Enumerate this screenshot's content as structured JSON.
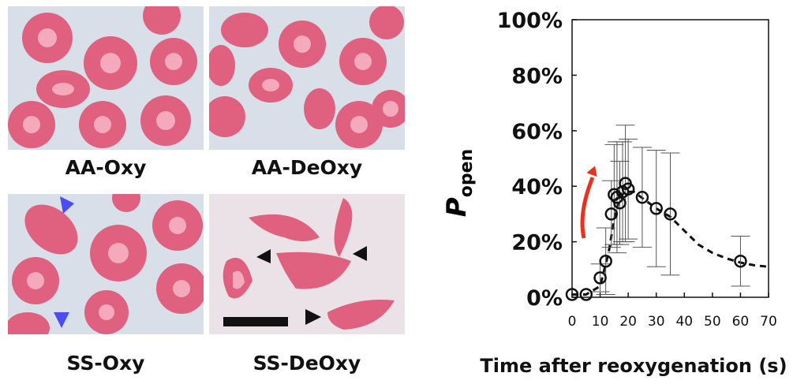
{
  "panels": [
    {
      "id": "aa-oxy",
      "label": "AA-Oxy"
    },
    {
      "id": "aa-deoxy",
      "label": "AA-DeOxy"
    },
    {
      "id": "ss-oxy",
      "label": "SS-Oxy"
    },
    {
      "id": "ss-deoxy",
      "label": "SS-DeOxy"
    }
  ],
  "colors": {
    "background": "#d8dfe8",
    "cell": "#e0607f",
    "cell_center": "#f5a9bd",
    "blue_arrow": "#4a4ef0",
    "black_arrow": "#111111",
    "scale_bar": "#111111",
    "red_arrow": "#e8311f"
  },
  "chart_data": {
    "type": "scatter",
    "ylabel": "P",
    "ylabel_sub": "open",
    "xlabel": "Time after reoxygenation (s)",
    "xlim": [
      0,
      70
    ],
    "ylim": [
      0,
      100
    ],
    "xticks": [
      "0",
      "10",
      "20",
      "30",
      "40",
      "50",
      "60",
      "70"
    ],
    "yticks": [
      "0%",
      "20%",
      "40%",
      "60%",
      "80%",
      "100%"
    ],
    "points": [
      {
        "x": 0,
        "y": 1,
        "err": 0
      },
      {
        "x": 5,
        "y": 1,
        "err": 0
      },
      {
        "x": 10,
        "y": 7,
        "err": 5
      },
      {
        "x": 12,
        "y": 13,
        "err": 12
      },
      {
        "x": 14,
        "y": 30,
        "err": 12
      },
      {
        "x": 15,
        "y": 37,
        "err": 18
      },
      {
        "x": 16,
        "y": 36,
        "err": 20
      },
      {
        "x": 17,
        "y": 34,
        "err": 15
      },
      {
        "x": 18,
        "y": 38,
        "err": 18
      },
      {
        "x": 19,
        "y": 41,
        "err": 21
      },
      {
        "x": 20,
        "y": 39,
        "err": 18
      },
      {
        "x": 25,
        "y": 36,
        "err": 18
      },
      {
        "x": 30,
        "y": 32,
        "err": 21
      },
      {
        "x": 35,
        "y": 30,
        "err": 22
      },
      {
        "x": 60,
        "y": 13,
        "err": 9
      }
    ],
    "fit_curve": [
      [
        0,
        1
      ],
      [
        5,
        1
      ],
      [
        10,
        4
      ],
      [
        13,
        16
      ],
      [
        15,
        28
      ],
      [
        17,
        36
      ],
      [
        19,
        38
      ],
      [
        22,
        38
      ],
      [
        26,
        35
      ],
      [
        30,
        32
      ],
      [
        35,
        29
      ],
      [
        40,
        24
      ],
      [
        45,
        19
      ],
      [
        50,
        16
      ],
      [
        55,
        14
      ],
      [
        60,
        12.5
      ],
      [
        65,
        11.5
      ],
      [
        70,
        11
      ]
    ],
    "grid": false,
    "annotation": "red upward arrow marking rise phase"
  }
}
